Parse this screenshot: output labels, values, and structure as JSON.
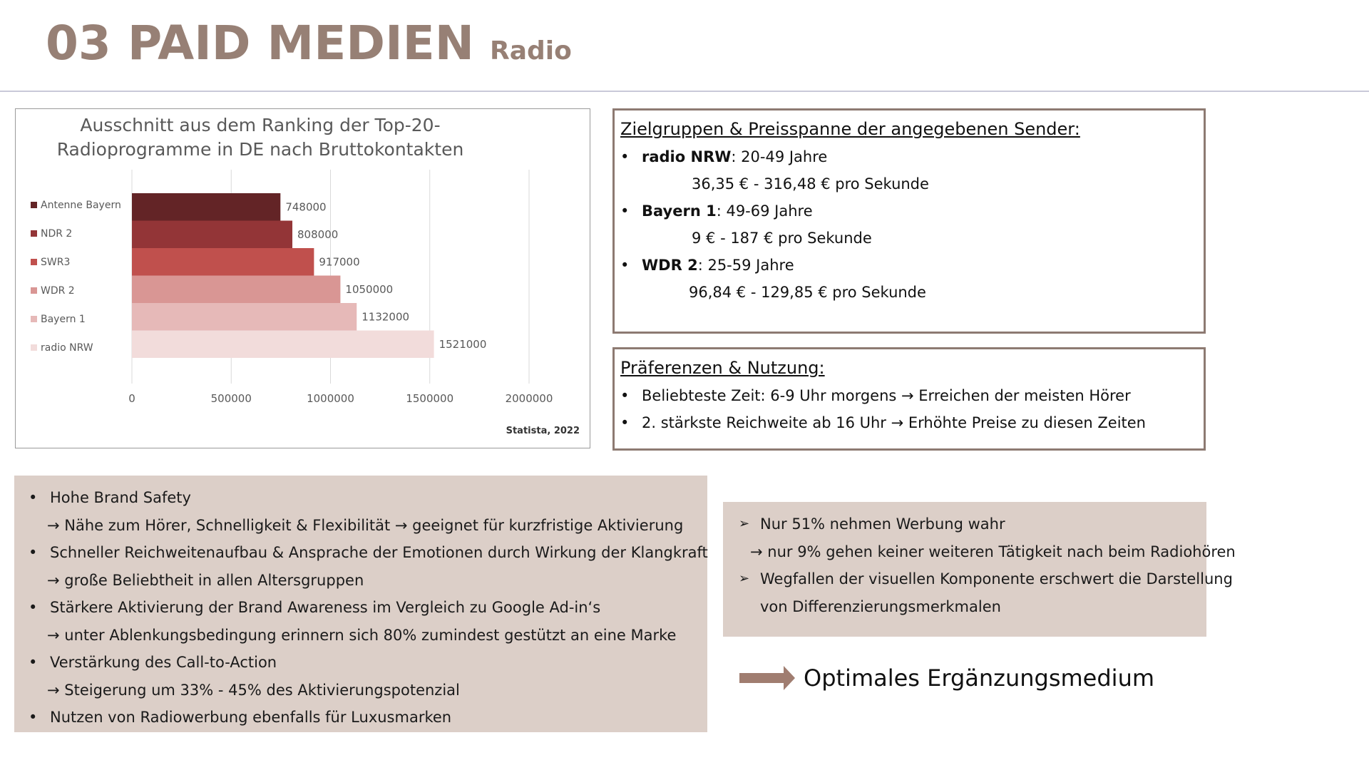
{
  "header": {
    "title": "03 PAID MEDIEN",
    "subtitle": "Radio"
  },
  "chart_data": {
    "type": "bar",
    "orientation": "horizontal",
    "title": "Ausschnitt aus dem Ranking der Top-20-Radioprogramme in DE nach Bruttokontakten",
    "title_lines": [
      "Ausschnitt aus dem Ranking der Top-20-",
      "Radioprogramme in DE nach Bruttokontakten"
    ],
    "categories": [
      "Antenne Bayern",
      "NDR 2",
      "SWR3",
      "WDR 2",
      "Bayern 1",
      "radio NRW"
    ],
    "values": [
      748000,
      808000,
      917000,
      1050000,
      1132000,
      1521000
    ],
    "value_labels": [
      "748000",
      "808000",
      "917000",
      "1050000",
      "1132000",
      "1521000"
    ],
    "colors": [
      "#632426",
      "#933537",
      "#c0504d",
      "#d99694",
      "#e6b9b8",
      "#f2dcdb"
    ],
    "xlim": [
      0,
      2000000
    ],
    "xticks": [
      "0",
      "500000",
      "1000000",
      "1500000",
      "2000000"
    ],
    "xtick_values": [
      0,
      500000,
      1000000,
      1500000,
      2000000
    ],
    "grid": true,
    "legend": "left",
    "source": "Statista, 2022"
  },
  "box_target": {
    "heading": "Zielgruppen & Preisspanne der angegebenen Sender:",
    "items": [
      {
        "name": "radio NRW",
        "ages": ": 20-49 Jahre",
        "price": "36,35 € - 316,48 € pro Sekunde"
      },
      {
        "name": "Bayern 1",
        "ages": ": 49-69 Jahre",
        "price": "9 € - 187 € pro Sekunde"
      },
      {
        "name": "WDR 2",
        "ages": ": 25-59 Jahre",
        "price": "96,84 € - 129,85 € pro Sekunde"
      }
    ]
  },
  "box_prefs": {
    "heading": "Präferenzen & Nutzung:",
    "items": [
      "Beliebteste Zeit: 6-9 Uhr morgens → Erreichen der meisten Hörer",
      "2. stärkste Reichweite ab 16 Uhr → Erhöhte Preise zu diesen Zeiten"
    ]
  },
  "panel_pros": {
    "lines": [
      {
        "kind": "bullet",
        "text": "Hohe Brand Safety"
      },
      {
        "kind": "sub",
        "text": "→ Nähe zum Hörer, Schnelligkeit & Flexibilität → geeignet für kurzfristige Aktivierung"
      },
      {
        "kind": "bullet",
        "text": "Schneller Reichweitenaufbau & Ansprache der Emotionen durch Wirkung der Klangkraft"
      },
      {
        "kind": "sub",
        "text": "→ große Beliebtheit in allen Altersgruppen"
      },
      {
        "kind": "bullet",
        "text": "Stärkere Aktivierung der Brand Awareness im Vergleich zu Google Ad-in‘s"
      },
      {
        "kind": "sub",
        "text": "→ unter Ablenkungsbedingung erinnern sich 80% zumindest gestützt an eine Marke"
      },
      {
        "kind": "bullet",
        "text": "Verstärkung des Call-to-Action"
      },
      {
        "kind": "sub",
        "text": "→ Steigerung um 33% - 45% des Aktivierungspotenzial"
      },
      {
        "kind": "bullet",
        "text": "Nutzen von Radiowerbung ebenfalls für Luxusmarken"
      }
    ]
  },
  "panel_cons": {
    "lines": [
      {
        "kind": "arrow",
        "text": "Nur 51% nehmen Werbung wahr"
      },
      {
        "kind": "sub",
        "text": "→ nur 9% gehen keiner weiteren Tätigkeit nach beim Radiohören"
      },
      {
        "kind": "arrow",
        "text": "Wegfallen der visuellen Komponente erschwert die Darstellung"
      },
      {
        "kind": "cont",
        "text": "von Differenzierungsmerkmalen"
      }
    ]
  },
  "conclusion": {
    "text": "Optimales Ergänzungsmedium",
    "arrow_color": "#a07d70"
  }
}
